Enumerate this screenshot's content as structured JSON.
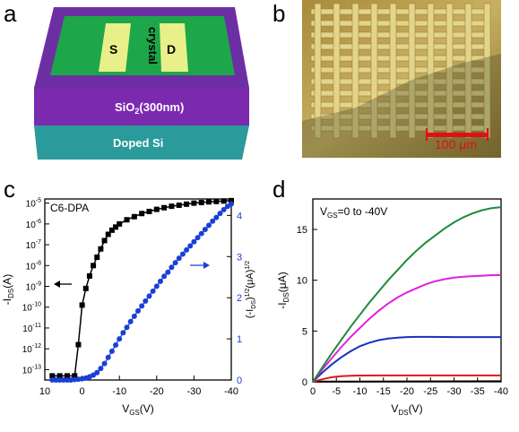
{
  "panels": {
    "a": "a",
    "b": "b",
    "c": "c",
    "d": "d"
  },
  "device": {
    "source_label": "S",
    "drain_label": "D",
    "crystal_label": "crystal",
    "oxide_label": "SiO2(300nm)",
    "oxide_main": "SiO",
    "oxide_sub": "2",
    "oxide_rest": "(300nm)",
    "substrate_label": "Doped Si",
    "colors": {
      "frame_purple": "#6b2fa3",
      "crystal_green": "#1ea64a",
      "electrode_yellow": "#e9f08a",
      "oxide_purple": "#7b2ab0",
      "substrate_teal": "#2a9a9a"
    }
  },
  "photo": {
    "scale_label": "100 μm",
    "scale_color": "#e01010"
  },
  "chart_data": [
    {
      "type": "line",
      "panel": "c",
      "annotation": "C6-DPA",
      "xlabel": "V_GS(V)",
      "ylabel_left": "-I_DS(A)",
      "ylabel_right": "(-I_DS)^1/2(μA)^1/2",
      "xlim": [
        10,
        -40
      ],
      "xticks": [
        "10",
        "0",
        "-10",
        "-20",
        "-30",
        "-40"
      ],
      "yticks_left": [
        "10-13",
        "10-12",
        "10-11",
        "10-10",
        "10-9",
        "10-8",
        "10-7",
        "10-6",
        "10-5"
      ],
      "yticks_right": [
        "0",
        "1",
        "2",
        "3",
        "4"
      ],
      "ylim_left_log10": [
        -13.5,
        -4.8
      ],
      "ylim_right": [
        0,
        4.4
      ],
      "series": [
        {
          "color": "#000000",
          "marker": "square",
          "axis": "left",
          "x": [
            8,
            6,
            4,
            2,
            1,
            0,
            -1,
            -2,
            -3,
            -4,
            -5,
            -6,
            -7,
            -8,
            -9,
            -10,
            -12,
            -14,
            -16,
            -18,
            -20,
            -22,
            -24,
            -26,
            -28,
            -30,
            -32,
            -34,
            -36,
            -38,
            -40
          ],
          "y_log10": [
            -13.3,
            -13.3,
            -13.3,
            -13.3,
            -11.8,
            -9.9,
            -9.1,
            -8.5,
            -8.0,
            -7.6,
            -7.2,
            -6.8,
            -6.5,
            -6.3,
            -6.15,
            -6.0,
            -5.8,
            -5.65,
            -5.5,
            -5.4,
            -5.3,
            -5.22,
            -5.15,
            -5.1,
            -5.05,
            -5.0,
            -4.97,
            -4.94,
            -4.92,
            -4.9,
            -4.88
          ]
        },
        {
          "color": "#1a3fd6",
          "marker": "circle",
          "axis": "right",
          "x": [
            8,
            7,
            6,
            5,
            4,
            3,
            2,
            1,
            0,
            -1,
            -2,
            -3,
            -4,
            -5,
            -6,
            -7,
            -8,
            -9,
            -10,
            -11,
            -12,
            -13,
            -14,
            -15,
            -16,
            -17,
            -18,
            -19,
            -20,
            -21,
            -22,
            -23,
            -24,
            -25,
            -26,
            -27,
            -28,
            -29,
            -30,
            -31,
            -32,
            -33,
            -34,
            -35,
            -36,
            -37,
            -38,
            -39,
            -40
          ],
          "y": [
            0,
            0,
            0,
            0,
            0,
            0,
            0.01,
            0.02,
            0.03,
            0.05,
            0.08,
            0.12,
            0.18,
            0.28,
            0.4,
            0.55,
            0.7,
            0.85,
            1.0,
            1.15,
            1.28,
            1.42,
            1.55,
            1.68,
            1.8,
            1.92,
            2.04,
            2.16,
            2.28,
            2.4,
            2.52,
            2.62,
            2.74,
            2.85,
            2.96,
            3.06,
            3.16,
            3.26,
            3.36,
            3.46,
            3.56,
            3.66,
            3.76,
            3.86,
            3.95,
            4.05,
            4.14,
            4.22,
            4.28
          ]
        }
      ]
    },
    {
      "type": "line",
      "panel": "d",
      "annotation": "V_GS=0 to -40V",
      "xlabel": "V_DS(V)",
      "ylabel": "-I_DS(μA)",
      "xlim": [
        0,
        -40
      ],
      "ylim": [
        0,
        18
      ],
      "xticks": [
        "0",
        "-5",
        "-10",
        "-15",
        "-20",
        "-25",
        "-30",
        "-35",
        "-40"
      ],
      "yticks": [
        "0",
        "5",
        "10",
        "15"
      ],
      "series": [
        {
          "color": "#000000",
          "x": [
            0,
            -40
          ],
          "y": [
            0.02,
            0.05
          ]
        },
        {
          "color": "#e01818",
          "x": [
            0,
            -2,
            -4,
            -6,
            -8,
            -10,
            -15,
            -20,
            -25,
            -30,
            -35,
            -40
          ],
          "y": [
            0,
            0.25,
            0.45,
            0.55,
            0.6,
            0.62,
            0.63,
            0.63,
            0.63,
            0.63,
            0.63,
            0.63
          ]
        },
        {
          "color": "#1a2fc0",
          "x": [
            0,
            -2,
            -4,
            -6,
            -8,
            -10,
            -12,
            -14,
            -16,
            -18,
            -20,
            -22,
            -25,
            -30,
            -35,
            -40
          ],
          "y": [
            0,
            0.9,
            1.7,
            2.4,
            3.0,
            3.5,
            3.85,
            4.1,
            4.25,
            4.35,
            4.4,
            4.42,
            4.42,
            4.4,
            4.4,
            4.4
          ]
        },
        {
          "color": "#e020e0",
          "x": [
            0,
            -2,
            -4,
            -6,
            -8,
            -10,
            -12,
            -14,
            -16,
            -18,
            -20,
            -22,
            -24,
            -26,
            -28,
            -30,
            -32,
            -34,
            -36,
            -38,
            -40
          ],
          "y": [
            0,
            1.2,
            2.3,
            3.4,
            4.4,
            5.3,
            6.2,
            7.0,
            7.7,
            8.3,
            8.8,
            9.2,
            9.6,
            9.9,
            10.1,
            10.25,
            10.35,
            10.4,
            10.45,
            10.5,
            10.5
          ]
        },
        {
          "color": "#1e8a3a",
          "x": [
            0,
            -2,
            -4,
            -6,
            -8,
            -10,
            -12,
            -14,
            -16,
            -18,
            -20,
            -22,
            -24,
            -26,
            -28,
            -30,
            -32,
            -34,
            -36,
            -38,
            -40
          ],
          "y": [
            0,
            1.4,
            2.8,
            4.1,
            5.4,
            6.6,
            7.8,
            8.9,
            10.0,
            11.0,
            12.0,
            12.9,
            13.7,
            14.4,
            15.1,
            15.7,
            16.2,
            16.6,
            16.9,
            17.1,
            17.2
          ]
        }
      ]
    }
  ]
}
